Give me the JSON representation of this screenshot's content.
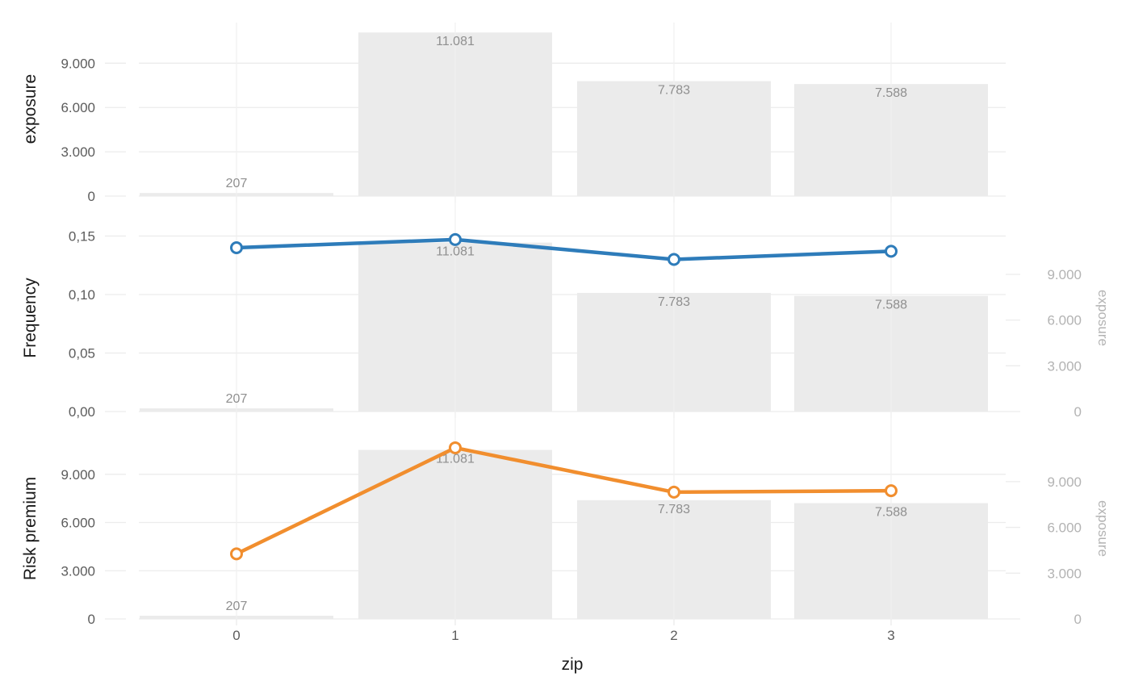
{
  "figure": {
    "xlabel": "zip",
    "categories": [
      "0",
      "1",
      "2",
      "3"
    ]
  },
  "colors": {
    "background": "#ffffff",
    "bar": "#ebebeb",
    "grid": "#ececec",
    "grid_vertical": "#f0f0f0",
    "axis_tick_label": "#5c5c5c",
    "bar_label": "#8f8f8f",
    "axis_title": "#1a1a1a",
    "right_axis": "#b3b3b3",
    "frequency_line": "#2e7cba",
    "risk_premium_line": "#f18e2e"
  },
  "chart_data": [
    {
      "panel": "exposure",
      "type": "bar",
      "ylabel": "exposure",
      "ylim": [
        0,
        11750
      ],
      "yticks": [
        {
          "v": 0,
          "label": "0"
        },
        {
          "v": 3000,
          "label": "3.000"
        },
        {
          "v": 6000,
          "label": "6.000"
        },
        {
          "v": 9000,
          "label": "9.000"
        }
      ],
      "bars": {
        "name": "exposure",
        "values": [
          207,
          11081,
          7783,
          7588
        ],
        "labels": [
          "207",
          "11.081",
          "7.783",
          "7.588"
        ]
      }
    },
    {
      "panel": "Frequency",
      "type": "line+bar",
      "ylabel": "Frequency",
      "ylim": [
        0,
        0.16
      ],
      "yticks": [
        {
          "v": 0,
          "label": "0,00"
        },
        {
          "v": 0.05,
          "label": "0,05"
        },
        {
          "v": 0.1,
          "label": "0,10"
        },
        {
          "v": 0.15,
          "label": "0,15"
        }
      ],
      "line": {
        "name": "Frequency",
        "values": [
          0.14,
          0.147,
          0.13,
          0.137
        ],
        "color": "#2e7cba"
      },
      "right_axis": {
        "ylabel": "exposure",
        "ylim": [
          0,
          12280
        ],
        "yticks": [
          {
            "v": 0,
            "label": "0"
          },
          {
            "v": 3000,
            "label": "3.000"
          },
          {
            "v": 6000,
            "label": "6.000"
          },
          {
            "v": 9000,
            "label": "9.000"
          }
        ],
        "bars": {
          "name": "exposure",
          "values": [
            207,
            11081,
            7783,
            7588
          ],
          "labels": [
            "207",
            "11.081",
            "7.783",
            "7.588"
          ]
        }
      }
    },
    {
      "panel": "Risk premium",
      "type": "line+bar",
      "ylabel": "Risk premium",
      "ylim": [
        0,
        11250
      ],
      "yticks": [
        {
          "v": 0,
          "label": "0"
        },
        {
          "v": 3000,
          "label": "3.000"
        },
        {
          "v": 6000,
          "label": "6.000"
        },
        {
          "v": 9000,
          "label": "9.000"
        }
      ],
      "line": {
        "name": "Risk premium",
        "values": [
          4050,
          10650,
          7890,
          7980
        ],
        "color": "#f18e2e"
      },
      "right_axis": {
        "ylabel": "exposure",
        "ylim": [
          0,
          11850
        ],
        "yticks": [
          {
            "v": 0,
            "label": "0"
          },
          {
            "v": 3000,
            "label": "3.000"
          },
          {
            "v": 6000,
            "label": "6.000"
          },
          {
            "v": 9000,
            "label": "9.000"
          }
        ],
        "bars": {
          "name": "exposure",
          "values": [
            207,
            11081,
            7783,
            7588
          ],
          "labels": [
            "207",
            "11.081",
            "7.783",
            "7.588"
          ]
        }
      }
    }
  ]
}
